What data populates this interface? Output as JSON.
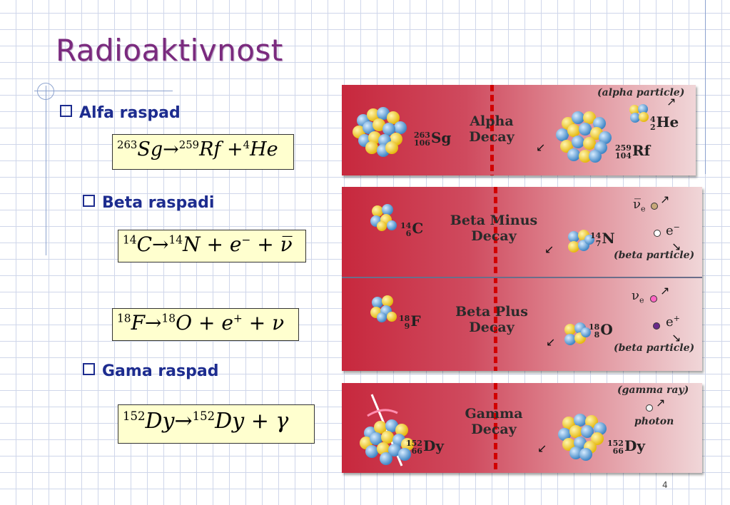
{
  "title": "Radioaktivnost",
  "page_number": "4",
  "sections": {
    "alpha": {
      "label": "Alfa raspad"
    },
    "beta": {
      "label": "Beta raspadi"
    },
    "gamma": {
      "label": "Gama raspad"
    }
  },
  "equations": {
    "alpha": {
      "a1": "263",
      "b1": "Sg",
      "op": "→",
      "a2": "259",
      "b2": "Rf",
      "plus": "+",
      "a3": "4",
      "b3": "He"
    },
    "beta_minus": {
      "a1": "14",
      "b1": "C",
      "op": "→",
      "a2": "14",
      "b2": "N",
      "plus1": "+",
      "e": "e",
      "esup": "−",
      "plus2": "+",
      "nu": "ν̅"
    },
    "beta_plus": {
      "a1": "18",
      "b1": "F",
      "op": "→",
      "a2": "18",
      "b2": "O",
      "plus1": "+",
      "e": "e",
      "esup": "+",
      "plus2": "+",
      "nu": "ν"
    },
    "gamma": {
      "a1": "152",
      "b1": "Dy",
      "op": "→",
      "a2": "152",
      "b2": "Dy",
      "plus": "+",
      "g": "γ"
    }
  },
  "panels": {
    "alpha": {
      "title1": "Alpha",
      "title2": "Decay",
      "caption": "(alpha particle)",
      "parent": {
        "mass": "263",
        "z": "106",
        "sym": "Sg"
      },
      "daughter": {
        "mass": "259",
        "z": "104",
        "sym": "Rf"
      },
      "particle": {
        "mass": "4",
        "z": "2",
        "sym": "He"
      }
    },
    "beta_minus": {
      "title1": "Beta Minus",
      "title2": "Decay",
      "caption": "(beta particle)",
      "parent": {
        "mass": "14",
        "z": "6",
        "sym": "C"
      },
      "daughter": {
        "mass": "14",
        "z": "7",
        "sym": "N"
      },
      "nu": "ν̅",
      "nu_sub": "e",
      "e": "e",
      "e_sup": "−"
    },
    "beta_plus": {
      "title1": "Beta Plus",
      "title2": "Decay",
      "caption": "(beta particle)",
      "parent": {
        "mass": "18",
        "z": "9",
        "sym": "F"
      },
      "daughter": {
        "mass": "18",
        "z": "8",
        "sym": "O"
      },
      "nu": "ν",
      "nu_sub": "e",
      "e": "e",
      "e_sup": "+"
    },
    "gamma": {
      "title1": "Gamma",
      "title2": "Decay",
      "caption": "(gamma ray)",
      "photon": "photon",
      "parent": {
        "mass": "152",
        "z": "66",
        "sym": "Dy"
      },
      "daughter": {
        "mass": "152",
        "z": "66",
        "sym": "Dy"
      }
    }
  },
  "colors": {
    "title": "#7a2a7e",
    "bullet": "#1d2c8f",
    "equation_bg": "#ffffcf",
    "panel_red": "#c7283d",
    "proton": "#f2cf2a",
    "neutron": "#5fa3d8"
  }
}
